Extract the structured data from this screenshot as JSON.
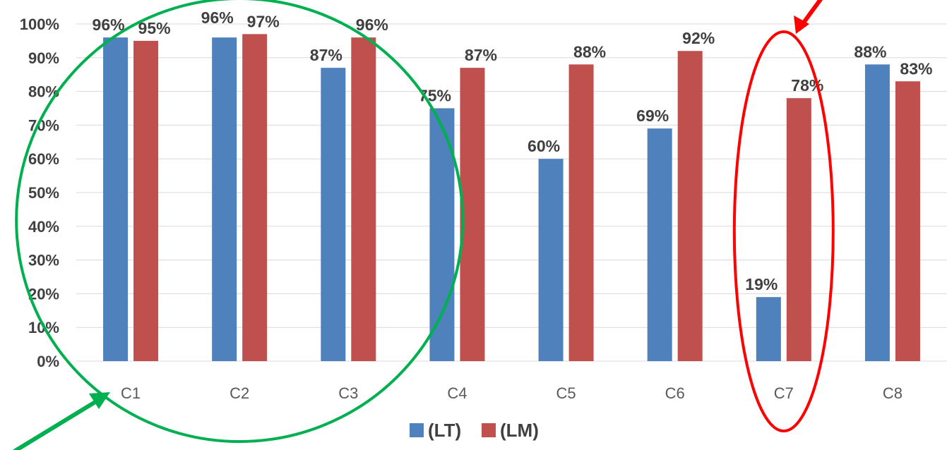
{
  "chart_data": {
    "type": "bar",
    "title": "",
    "xlabel": "",
    "ylabel": "",
    "categories": [
      "C1",
      "C2",
      "C3",
      "C4",
      "C5",
      "C6",
      "C7",
      "C8"
    ],
    "series": [
      {
        "name": "(LT)",
        "color": "#4F81BD",
        "values": [
          96,
          96,
          87,
          75,
          60,
          69,
          19,
          88
        ],
        "labels": [
          "96%",
          "96%",
          "87%",
          "75%",
          "60%",
          "69%",
          "19%",
          "88%"
        ]
      },
      {
        "name": "(LM)",
        "color": "#C0504D",
        "values": [
          95,
          97,
          96,
          87,
          88,
          92,
          78,
          83
        ],
        "labels": [
          "95%",
          "97%",
          "96%",
          "87%",
          "88%",
          "92%",
          "78%",
          "83%"
        ]
      }
    ],
    "ylim": [
      0,
      100
    ],
    "yticks": [
      "0%",
      "10%",
      "20%",
      "30%",
      "40%",
      "50%",
      "60%",
      "70%",
      "80%",
      "90%",
      "100%"
    ],
    "grid": true,
    "legend_position": "bottom",
    "annotations": [
      {
        "type": "ellipse",
        "color": "#00B050",
        "encloses": [
          "C1",
          "C2",
          "C3"
        ]
      },
      {
        "type": "ellipse",
        "color": "#FF0000",
        "encloses": [
          "C7"
        ]
      },
      {
        "type": "arrow",
        "color": "#00B050",
        "points_to": "C1"
      },
      {
        "type": "arrow",
        "color": "#FF0000",
        "points_to": "C7"
      }
    ]
  }
}
